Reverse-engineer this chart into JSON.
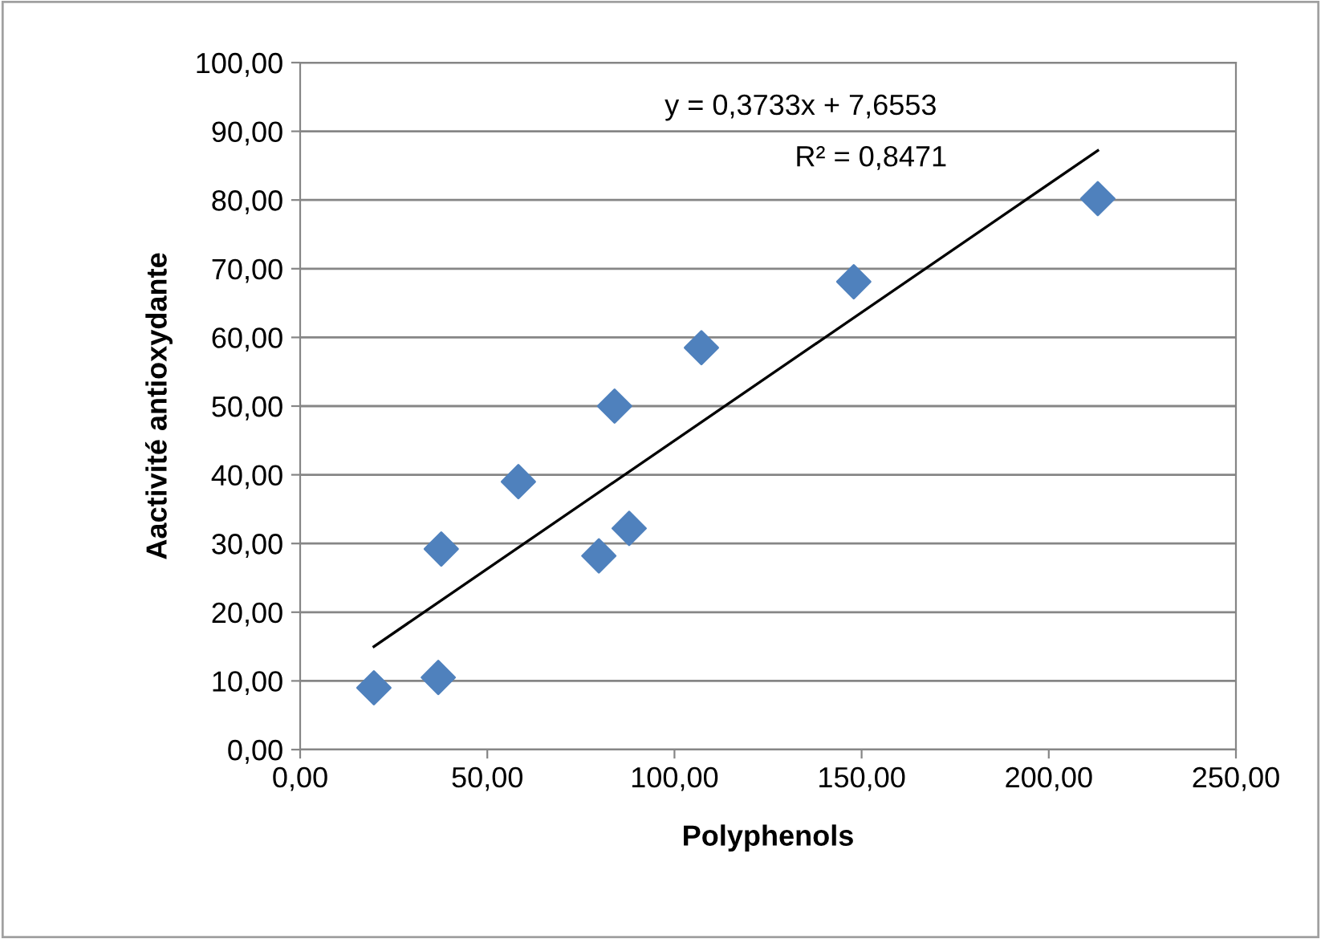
{
  "chart_data": {
    "type": "scatter",
    "xlabel": "Polyphenols",
    "ylabel": "Aactivité antioxydante",
    "series": [
      {
        "color": "#4f81bd",
        "marker": "diamond",
        "x": [
          19.7,
          36.9,
          37.7,
          58.3,
          79.8,
          84.0,
          87.9,
          107.2,
          147.9,
          213.1
        ],
        "values": [
          9.0,
          10.5,
          29.2,
          39.0,
          28.2,
          50.0,
          32.2,
          58.5,
          68.1,
          80.2
        ]
      },
      {
        "type": "line",
        "color": "#000000",
        "marker": "none",
        "line_style": "solid",
        "x": [
          19.7,
          213.1
        ],
        "values": [
          15.0,
          87.2
        ]
      }
    ],
    "annotations": [
      "y = 0,3733x + 7,6553",
      "R² = 0,8471"
    ],
    "xlim": [
      0,
      250
    ],
    "ylim": [
      0,
      100
    ],
    "xticks": [
      {
        "value": 0,
        "label": "0,00"
      },
      {
        "value": 50,
        "label": "50,00"
      },
      {
        "value": 100,
        "label": "100,00"
      },
      {
        "value": 150,
        "label": "150,00"
      },
      {
        "value": 200,
        "label": "200,00"
      },
      {
        "value": 250,
        "label": "250,00"
      }
    ],
    "yticks": [
      {
        "value": 0,
        "label": "0,00"
      },
      {
        "value": 10,
        "label": "10,00"
      },
      {
        "value": 20,
        "label": "20,00"
      },
      {
        "value": 30,
        "label": "30,00"
      },
      {
        "value": 40,
        "label": "40,00"
      },
      {
        "value": 50,
        "label": "50,00"
      },
      {
        "value": 60,
        "label": "60,00"
      },
      {
        "value": 70,
        "label": "70,00"
      },
      {
        "value": 80,
        "label": "80,00"
      },
      {
        "value": 90,
        "label": "90,00"
      },
      {
        "value": 100,
        "label": "100,00"
      }
    ],
    "grid": "y",
    "legend": false
  }
}
